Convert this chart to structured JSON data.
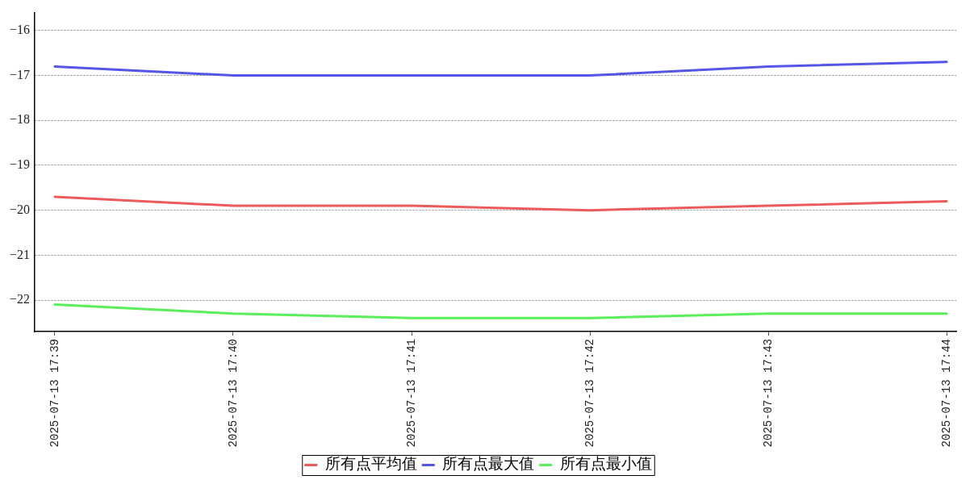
{
  "chart_data": {
    "type": "line",
    "categories": [
      "2025-07-13 17:39",
      "2025-07-13 17:40",
      "2025-07-13 17:41",
      "2025-07-13 17:42",
      "2025-07-13 17:43",
      "2025-07-13 17:44"
    ],
    "series": [
      {
        "name": "所有点平均值",
        "color": "#ec5b5b",
        "values": [
          -19.7,
          -19.9,
          -19.9,
          -20,
          -19.9,
          -19.8
        ]
      },
      {
        "name": "所有点最大值",
        "color": "#5656e6",
        "values": [
          -16.8,
          -17,
          -17,
          -17,
          -16.8,
          -16.7
        ]
      },
      {
        "name": "所有点最小值",
        "color": "#5aee5a",
        "values": [
          -22.1,
          -22.3,
          -22.4,
          -22.4,
          -22.3,
          -22.3
        ]
      }
    ],
    "ylim": [
      -22.7,
      -15.6
    ],
    "yticks": [
      {
        "value": -22,
        "label": "−22"
      },
      {
        "value": -21,
        "label": "−21"
      },
      {
        "value": -20,
        "label": "−20"
      },
      {
        "value": -19,
        "label": "−19"
      },
      {
        "value": -18,
        "label": "−18"
      },
      {
        "value": -17,
        "label": "−17"
      },
      {
        "value": -16,
        "label": "−16"
      }
    ],
    "grid": "y",
    "legend": "bottom",
    "line_style": "solid"
  }
}
